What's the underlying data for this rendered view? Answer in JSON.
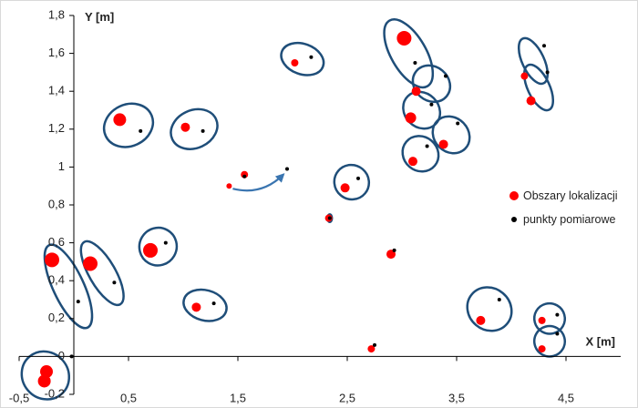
{
  "chart_data": {
    "type": "scatter",
    "xlabel": "X [m]",
    "ylabel": "Y [m]",
    "xlim": [
      -0.5,
      5.0
    ],
    "ylim": [
      -0.2,
      1.8
    ],
    "x_ticks": [
      -0.5,
      0.5,
      1.5,
      2.5,
      3.5,
      4.5
    ],
    "x_tick_labels": [
      "-0,5",
      "0,5",
      "1,5",
      "2,5",
      "3,5",
      "4,5"
    ],
    "y_ticks": [
      -0.2,
      0,
      0.2,
      0.4,
      0.6,
      0.8,
      1,
      1.2,
      1.4,
      1.6,
      1.8
    ],
    "y_tick_labels": [
      "-0,2",
      "0",
      "0,2",
      "0,4",
      "0,6",
      "0,8",
      "1",
      "1,2",
      "1,4",
      "1,6",
      "1,8"
    ],
    "grid": false,
    "legend_position": "right",
    "colors": {
      "localization": "#ff0000",
      "measurement": "#000000",
      "ellipse": "#1f4e79",
      "arrow": "#3a75b0",
      "axis": "#000000"
    },
    "series": [
      {
        "name": "Obszary lokalizacji",
        "points": [
          {
            "x": -0.25,
            "y": -0.08,
            "size": 7
          },
          {
            "x": -0.27,
            "y": -0.13,
            "size": 7
          },
          {
            "x": -0.2,
            "y": 0.51,
            "size": 8
          },
          {
            "x": 0.15,
            "y": 0.49,
            "size": 8
          },
          {
            "x": 0.42,
            "y": 1.25,
            "size": 7
          },
          {
            "x": 0.7,
            "y": 0.56,
            "size": 8
          },
          {
            "x": 1.02,
            "y": 1.21,
            "size": 5
          },
          {
            "x": 1.12,
            "y": 0.26,
            "size": 5
          },
          {
            "x": 1.42,
            "y": 0.9,
            "size": 3
          },
          {
            "x": 1.56,
            "y": 0.96,
            "size": 4
          },
          {
            "x": 2.02,
            "y": 1.55,
            "size": 4
          },
          {
            "x": 2.33,
            "y": 0.73,
            "size": 4
          },
          {
            "x": 2.48,
            "y": 0.89,
            "size": 5
          },
          {
            "x": 2.72,
            "y": 0.04,
            "size": 4
          },
          {
            "x": 2.9,
            "y": 0.54,
            "size": 5
          },
          {
            "x": 3.02,
            "y": 1.68,
            "size": 8
          },
          {
            "x": 3.08,
            "y": 1.26,
            "size": 6
          },
          {
            "x": 3.1,
            "y": 1.03,
            "size": 5
          },
          {
            "x": 3.13,
            "y": 1.4,
            "size": 5
          },
          {
            "x": 3.38,
            "y": 1.12,
            "size": 5
          },
          {
            "x": 3.72,
            "y": 0.19,
            "size": 5
          },
          {
            "x": 4.12,
            "y": 1.48,
            "size": 4
          },
          {
            "x": 4.18,
            "y": 1.35,
            "size": 5
          },
          {
            "x": 4.28,
            "y": 0.19,
            "size": 4
          },
          {
            "x": 4.28,
            "y": 0.04,
            "size": 4
          }
        ]
      },
      {
        "name": "punkty pomiarowe",
        "points": [
          {
            "x": -0.02,
            "y": 0.0
          },
          {
            "x": 0.04,
            "y": 0.29
          },
          {
            "x": 0.37,
            "y": 0.39
          },
          {
            "x": 0.61,
            "y": 1.19
          },
          {
            "x": 0.84,
            "y": 0.6
          },
          {
            "x": 1.18,
            "y": 1.19
          },
          {
            "x": 1.28,
            "y": 0.28
          },
          {
            "x": 1.56,
            "y": 0.95
          },
          {
            "x": 1.95,
            "y": 0.99
          },
          {
            "x": 2.17,
            "y": 1.58
          },
          {
            "x": 2.34,
            "y": 0.73
          },
          {
            "x": 2.6,
            "y": 0.94
          },
          {
            "x": 2.75,
            "y": 0.06
          },
          {
            "x": 2.93,
            "y": 0.56
          },
          {
            "x": 3.12,
            "y": 1.55
          },
          {
            "x": 3.23,
            "y": 1.11
          },
          {
            "x": 3.27,
            "y": 1.33
          },
          {
            "x": 3.4,
            "y": 1.48
          },
          {
            "x": 3.51,
            "y": 1.23
          },
          {
            "x": 3.89,
            "y": 0.3
          },
          {
            "x": 4.3,
            "y": 1.64
          },
          {
            "x": 4.33,
            "y": 1.5
          },
          {
            "x": 4.42,
            "y": 0.22
          },
          {
            "x": 4.42,
            "y": 0.12
          }
        ]
      }
    ],
    "ellipses": [
      {
        "cx": -0.26,
        "cy": -0.1,
        "rx": 0.21,
        "ry": 0.13,
        "angle": -40
      },
      {
        "cx": -0.05,
        "cy": 0.37,
        "rx": 0.14,
        "ry": 0.24,
        "angle": -25
      },
      {
        "cx": 0.26,
        "cy": 0.44,
        "rx": 0.12,
        "ry": 0.19,
        "angle": -30
      },
      {
        "cx": 0.5,
        "cy": 1.22,
        "rx": 0.23,
        "ry": 0.11,
        "angle": -25
      },
      {
        "cx": 0.77,
        "cy": 0.58,
        "rx": 0.17,
        "ry": 0.1,
        "angle": 30
      },
      {
        "cx": 1.1,
        "cy": 1.2,
        "rx": 0.22,
        "ry": 0.1,
        "angle": -25
      },
      {
        "cx": 1.2,
        "cy": 0.27,
        "rx": 0.2,
        "ry": 0.08,
        "angle": 15
      },
      {
        "cx": 2.09,
        "cy": 1.57,
        "rx": 0.2,
        "ry": 0.08,
        "angle": 20
      },
      {
        "cx": 2.34,
        "cy": 0.73,
        "rx": 0.02,
        "ry": 0.02,
        "angle": 0
      },
      {
        "cx": 2.54,
        "cy": 0.92,
        "rx": 0.16,
        "ry": 0.09,
        "angle": 40
      },
      {
        "cx": 3.06,
        "cy": 1.6,
        "rx": 0.16,
        "ry": 0.2,
        "angle": -30
      },
      {
        "cx": 3.18,
        "cy": 1.3,
        "rx": 0.18,
        "ry": 0.09,
        "angle": 45
      },
      {
        "cx": 3.17,
        "cy": 1.07,
        "rx": 0.17,
        "ry": 0.09,
        "angle": 40
      },
      {
        "cx": 3.27,
        "cy": 1.44,
        "rx": 0.18,
        "ry": 0.09,
        "angle": 40
      },
      {
        "cx": 3.45,
        "cy": 1.17,
        "rx": 0.18,
        "ry": 0.09,
        "angle": 45
      },
      {
        "cx": 3.8,
        "cy": 0.25,
        "rx": 0.21,
        "ry": 0.11,
        "angle": 40
      },
      {
        "cx": 4.2,
        "cy": 1.56,
        "rx": 0.1,
        "ry": 0.13,
        "angle": -25
      },
      {
        "cx": 4.25,
        "cy": 1.42,
        "rx": 0.1,
        "ry": 0.13,
        "angle": -25
      },
      {
        "cx": 4.35,
        "cy": 0.2,
        "rx": 0.14,
        "ry": 0.08,
        "angle": 30
      },
      {
        "cx": 4.35,
        "cy": 0.08,
        "rx": 0.14,
        "ry": 0.08,
        "angle": 30
      }
    ],
    "arrow": {
      "from": [
        1.42,
        0.9
      ],
      "to": [
        1.95,
        0.98
      ]
    }
  }
}
